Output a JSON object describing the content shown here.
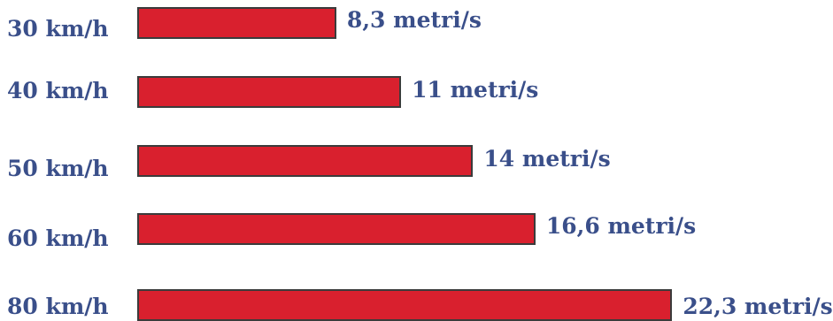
{
  "chart_data": {
    "type": "bar",
    "orientation": "horizontal",
    "categories": [
      "30 km/h",
      "40 km/h",
      "50 km/h",
      "60 km/h",
      "80 km/h"
    ],
    "values": [
      8.3,
      11,
      14,
      16.6,
      22.3
    ],
    "value_labels": [
      "8,3 metri/s",
      "11 metri/s",
      "14 metri/s",
      "16,6 metri/s",
      "22,3 metri/s"
    ],
    "title": "",
    "xlabel": "",
    "ylabel": "",
    "grid": false,
    "legend": "none",
    "bar_color": "#d9202e",
    "bar_border_color": "#3b3b3b",
    "text_color": "#3a4f8a"
  }
}
